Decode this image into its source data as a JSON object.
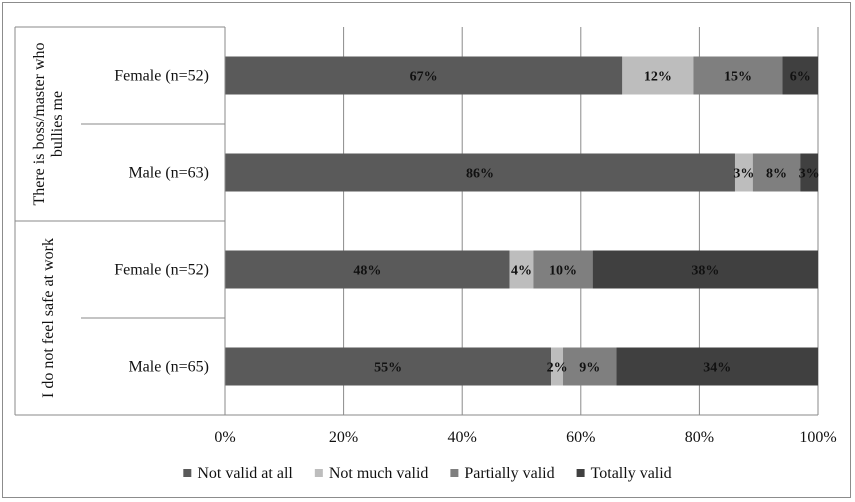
{
  "chart_data": {
    "type": "bar",
    "stacked": "percent",
    "orientation": "horizontal",
    "groups": [
      {
        "label": "There is boss/master who bullies me",
        "label_lines": [
          "There is boss/master who",
          "bullies me"
        ]
      },
      {
        "label": "I do not feel safe at work",
        "label_lines": [
          "I do not feel safe at work"
        ]
      }
    ],
    "categories": [
      "Female (n=52)",
      "Male (n=63)",
      "Female (n=52)",
      "Male (n=65)"
    ],
    "series": [
      {
        "name": "Not valid at all",
        "color": "#5a5a5a",
        "values": [
          67,
          86,
          48,
          55
        ]
      },
      {
        "name": "Not much valid",
        "color": "#bdbdbd",
        "values": [
          12,
          3,
          4,
          2
        ]
      },
      {
        "name": "Partially valid",
        "color": "#7f7f7f",
        "values": [
          15,
          8,
          10,
          9
        ]
      },
      {
        "name": "Totally valid",
        "color": "#404040",
        "values": [
          6,
          3,
          38,
          34
        ]
      }
    ],
    "data_labels": [
      [
        "67%",
        "12%",
        "15%",
        "6%"
      ],
      [
        "86%",
        "3%",
        "8%",
        "3%"
      ],
      [
        "48%",
        "4%",
        "10%",
        "38%"
      ],
      [
        "55%",
        "2%",
        "9%",
        "34%"
      ]
    ],
    "xlim": [
      0,
      100
    ],
    "xticks": [
      "0%",
      "20%",
      "40%",
      "60%",
      "80%",
      "100%"
    ],
    "grid": true,
    "legend_position": "bottom"
  }
}
